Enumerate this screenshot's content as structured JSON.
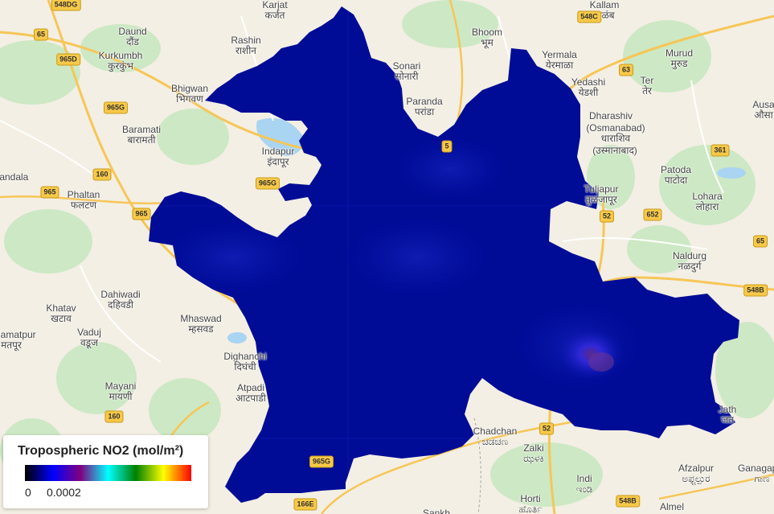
{
  "map": {
    "legend": {
      "title": "Tropospheric NO2 (mol/m²)",
      "min_label": "0",
      "max_label": "0.0002",
      "palette": [
        "#000000",
        "#0000ff",
        "#800080",
        "#00ffff",
        "#008000",
        "#ffff00",
        "#ff0000"
      ]
    },
    "overlay_color": "#000c96",
    "places": [
      {
        "name": "Karjat",
        "native": "कर्जत"
      },
      {
        "name": "Daund",
        "native": "दौंड"
      },
      {
        "name": "Kurkumbh",
        "native": "कुरकुंभ"
      },
      {
        "name": "Rashin",
        "native": "राशीन"
      },
      {
        "name": "Bhigwan",
        "native": "भिगवण"
      },
      {
        "name": "Baramati",
        "native": "बारामती"
      },
      {
        "name": "Phaltan",
        "native": "फलटण"
      },
      {
        "name": "Indapur",
        "native": "इंदापूर"
      },
      {
        "name": "Dahiwadi",
        "native": "दहिवडी"
      },
      {
        "name": "Khatav",
        "native": "खटाव"
      },
      {
        "name": "Vaduj",
        "native": "वडूज"
      },
      {
        "name": "Mhaswad",
        "native": "म्हसवड"
      },
      {
        "name": "Mayani",
        "native": "मायणी"
      },
      {
        "name": "Dighanchi",
        "native": "दिघंची"
      },
      {
        "name": "Atpadi",
        "native": "आटपाडी"
      },
      {
        "name": "Sonari",
        "native": "सोनारी"
      },
      {
        "name": "Bhoom",
        "native": "भूम"
      },
      {
        "name": "Paranda",
        "native": "परांडा"
      },
      {
        "name": "Yermala",
        "native": "येरमाळा"
      },
      {
        "name": "Yedashi",
        "native": "येडशी"
      },
      {
        "name": "Ter",
        "native": "तेर"
      },
      {
        "name": "Murud",
        "native": "मुरुड"
      },
      {
        "name": "Dharashiv",
        "native": ""
      },
      {
        "name": "(Osmanabad)",
        "native": "धाराशिव"
      },
      {
        "name": "(उस्मानाबाद)",
        "native": ""
      },
      {
        "name": "Tuljapur",
        "native": "तुळजापूर"
      },
      {
        "name": "Patoda",
        "native": "पाटोदा"
      },
      {
        "name": "Lohara",
        "native": "लोहारा"
      },
      {
        "name": "Naldurg",
        "native": "नळदुर्ग"
      },
      {
        "name": "Chadchan",
        "native": "ಚಡಚಣ"
      },
      {
        "name": "Zalki",
        "native": "ಝಳಕಿ"
      },
      {
        "name": "Indi",
        "native": "ಇಂಡಿ"
      },
      {
        "name": "Horti",
        "native": "ಹೊರ್ತಿ"
      },
      {
        "name": "Afzalpur",
        "native": "ಅಫ್ಜಲ್ಪುರ"
      },
      {
        "name": "Almel",
        "native": ""
      },
      {
        "name": "Sankh",
        "native": ""
      },
      {
        "name": "Jath",
        "native": "जत"
      },
      {
        "name": "Ausa",
        "native": "औसा"
      },
      {
        "name": "Kallam",
        "native": "कळंब"
      },
      {
        "name": "Khandala",
        "native": ""
      },
      {
        "name": "Ganagapur",
        "native": "ಗಾಣ"
      },
      {
        "name": "Aalamatpur",
        "native": "मतपूर"
      }
    ],
    "shields": [
      "548DG",
      "548C",
      "65",
      "965D",
      "965G",
      "160",
      "965",
      "965",
      "965G",
      "63",
      "361",
      "52",
      "652",
      "548B",
      "52",
      "548B",
      "160",
      "965G",
      "166E",
      "65",
      "5"
    ]
  }
}
